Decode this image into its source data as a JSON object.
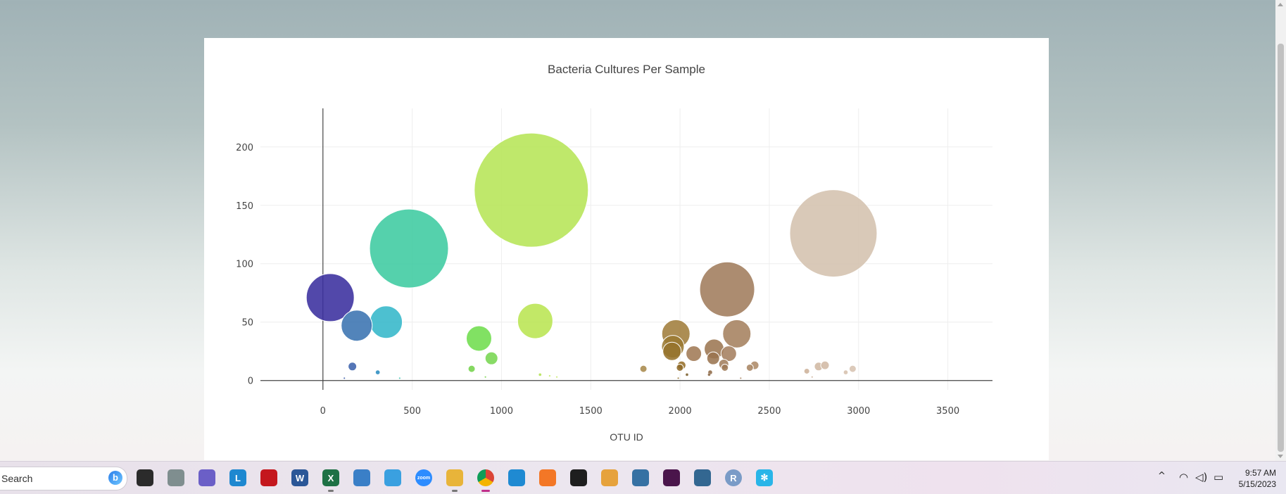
{
  "chart_data": {
    "type": "scatter",
    "title": "Bacteria Cultures Per Sample",
    "xlabel": "OTU ID",
    "ylabel": "",
    "xlim": [
      -350,
      3750
    ],
    "ylim": [
      -8,
      233
    ],
    "xticks": [
      0,
      500,
      1000,
      1500,
      2000,
      2500,
      3000,
      3500
    ],
    "yticks": [
      0,
      50,
      100,
      150,
      200
    ],
    "grid": true,
    "marker_scale": "area proportional to value",
    "series": [
      {
        "points": [
          {
            "x": 41,
            "y": 71,
            "r": 34,
            "color": "#3a2f9e"
          },
          {
            "x": 189,
            "y": 47,
            "r": 22,
            "color": "#3a73b1"
          },
          {
            "x": 165,
            "y": 12,
            "r": 6,
            "color": "#3d63ad"
          },
          {
            "x": 354,
            "y": 50,
            "r": 23,
            "color": "#34b7c9"
          },
          {
            "x": 307,
            "y": 7,
            "r": 3,
            "color": "#2a8cc0"
          },
          {
            "x": 482,
            "y": 113,
            "r": 56,
            "color": "#3ecba0"
          },
          {
            "x": 874,
            "y": 36,
            "r": 18,
            "color": "#6fdd4d"
          },
          {
            "x": 944,
            "y": 19,
            "r": 9,
            "color": "#77d651"
          },
          {
            "x": 833,
            "y": 10,
            "r": 5,
            "color": "#74d34b"
          },
          {
            "x": 1167,
            "y": 163,
            "r": 81,
            "color": "#b6e557"
          },
          {
            "x": 1189,
            "y": 51,
            "r": 25,
            "color": "#b9e552"
          },
          {
            "x": 1795,
            "y": 10,
            "r": 5,
            "color": "#a88a4c"
          },
          {
            "x": 1977,
            "y": 40,
            "r": 20,
            "color": "#a07d3b"
          },
          {
            "x": 1960,
            "y": 29,
            "r": 16,
            "color": "#9b7a32"
          },
          {
            "x": 1955,
            "y": 25,
            "r": 13,
            "color": "#96732c"
          },
          {
            "x": 2009,
            "y": 13,
            "r": 6,
            "color": "#96702a"
          },
          {
            "x": 1999,
            "y": 11,
            "r": 5,
            "color": "#8e6a28"
          },
          {
            "x": 2039,
            "y": 5,
            "r": 2,
            "color": "#7a5c2a"
          },
          {
            "x": 2077,
            "y": 23,
            "r": 11,
            "color": "#a07a55"
          },
          {
            "x": 2191,
            "y": 27,
            "r": 14,
            "color": "#9c7652"
          },
          {
            "x": 2186,
            "y": 19,
            "r": 9,
            "color": "#9a7450"
          },
          {
            "x": 2264,
            "y": 78,
            "r": 39,
            "color": "#a07c5c"
          },
          {
            "x": 2273,
            "y": 23,
            "r": 11,
            "color": "#a58060"
          },
          {
            "x": 2318,
            "y": 40,
            "r": 20,
            "color": "#a5815f"
          },
          {
            "x": 2245,
            "y": 14,
            "r": 7,
            "color": "#a3805e"
          },
          {
            "x": 2251,
            "y": 11,
            "r": 5,
            "color": "#9e7a56"
          },
          {
            "x": 2169,
            "y": 7,
            "r": 3,
            "color": "#8f6b48"
          },
          {
            "x": 2163,
            "y": 5,
            "r": 2,
            "color": "#8a6644"
          },
          {
            "x": 2391,
            "y": 11,
            "r": 5,
            "color": "#a98563"
          },
          {
            "x": 2418,
            "y": 13,
            "r": 6,
            "color": "#ad8a68"
          },
          {
            "x": 2859,
            "y": 126,
            "r": 62,
            "color": "#d4c1ae"
          },
          {
            "x": 2710,
            "y": 8,
            "r": 4,
            "color": "#cdb29a"
          },
          {
            "x": 2776,
            "y": 12,
            "r": 6,
            "color": "#d0b8a3"
          },
          {
            "x": 2812,
            "y": 13,
            "r": 6,
            "color": "#d2baa5"
          },
          {
            "x": 2928,
            "y": 7,
            "r": 3,
            "color": "#d6c0ad"
          },
          {
            "x": 2967,
            "y": 10,
            "r": 5,
            "color": "#d7c3b0"
          },
          {
            "x": 1216,
            "y": 5,
            "r": 2,
            "color": "#b2e14f"
          },
          {
            "x": 1270,
            "y": 4,
            "r": 1,
            "color": "#bde65a"
          },
          {
            "x": 1310,
            "y": 3,
            "r": 1,
            "color": "#c6e864"
          },
          {
            "x": 910,
            "y": 3,
            "r": 1,
            "color": "#7ad64f"
          },
          {
            "x": 120,
            "y": 2,
            "r": 1,
            "color": "#3b5cab"
          },
          {
            "x": 430,
            "y": 2,
            "r": 1,
            "color": "#3fc4b0"
          },
          {
            "x": 1990,
            "y": 2,
            "r": 1,
            "color": "#93702e"
          },
          {
            "x": 2340,
            "y": 2,
            "r": 1,
            "color": "#a88462"
          },
          {
            "x": 2740,
            "y": 3,
            "r": 1,
            "color": "#cfb49e"
          }
        ]
      }
    ]
  },
  "taskbar": {
    "search_label": "Search",
    "bing_glyph": "b",
    "icons": [
      {
        "name": "task-view-icon",
        "color": "#2b2b2b",
        "glyph": ""
      },
      {
        "name": "edge-icon",
        "color": "#7f8e8f",
        "glyph": ""
      },
      {
        "name": "teams-meet-icon",
        "color": "#6b5fc7",
        "glyph": ""
      },
      {
        "name": "l-app-icon",
        "color": "#1e88d0",
        "glyph": "L"
      },
      {
        "name": "mcafee-icon",
        "color": "#c4171d",
        "glyph": ""
      },
      {
        "name": "word-icon",
        "color": "#2b5797",
        "glyph": "W"
      },
      {
        "name": "excel-icon",
        "color": "#1e7145",
        "glyph": "X"
      },
      {
        "name": "notepad-icon",
        "color": "#3a7fc7",
        "glyph": ""
      },
      {
        "name": "paint-icon",
        "color": "#3aa0e0",
        "glyph": ""
      },
      {
        "name": "zoom-icon",
        "color": "#2d8cff",
        "glyph": "zoom"
      },
      {
        "name": "file-explorer-icon",
        "color": "#e8b43a",
        "glyph": ""
      },
      {
        "name": "chrome-icon",
        "color": "#db4437",
        "glyph": ""
      },
      {
        "name": "vscode-icon",
        "color": "#1f8ad2",
        "glyph": ""
      },
      {
        "name": "jupyter-icon",
        "color": "#f37726",
        "glyph": ""
      },
      {
        "name": "terminal-icon",
        "color": "#1e1e1e",
        "glyph": ""
      },
      {
        "name": "git-icon",
        "color": "#e6a23c",
        "glyph": ""
      },
      {
        "name": "python-icon",
        "color": "#3671a3",
        "glyph": ""
      },
      {
        "name": "slack-icon",
        "color": "#4a154b",
        "glyph": ""
      },
      {
        "name": "postgres-icon",
        "color": "#336791",
        "glyph": ""
      },
      {
        "name": "r-icon",
        "color": "#7a9bc7",
        "glyph": "R"
      },
      {
        "name": "snowflake-icon",
        "color": "#29b5e8",
        "glyph": "✻"
      }
    ],
    "time": "9:57 AM",
    "date": "5/15/2023"
  }
}
